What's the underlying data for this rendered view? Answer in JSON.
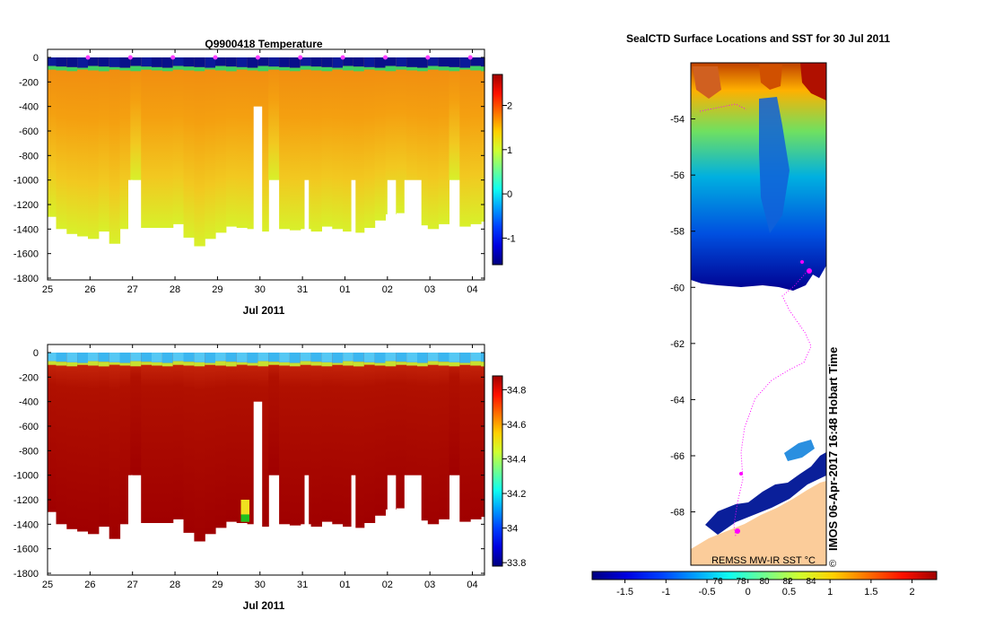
{
  "colors": {
    "jet": [
      "#00007f",
      "#0000e0",
      "#0040ff",
      "#00a0ff",
      "#10ffef",
      "#70ff8f",
      "#cfff30",
      "#ffd000",
      "#ff7000",
      "#ff1000",
      "#a00000"
    ],
    "land": "#fbcc9a",
    "track": "#ff00ff",
    "frame": "#000000"
  },
  "chart_data": [
    {
      "type": "heatmap",
      "title": "Q9900418  Temperature",
      "xlabel": "Jul 2011",
      "ylabel": "",
      "x_ticks": [
        "25",
        "26",
        "27",
        "28",
        "29",
        "30",
        "31",
        "01",
        "02",
        "03",
        "04"
      ],
      "y_ticks": [
        "0",
        "-200",
        "-400",
        "-600",
        "-800",
        "-1000",
        "-1200",
        "-1400",
        "-1600",
        "-1800"
      ],
      "ylim": [
        -1800,
        0
      ],
      "colorbar_ticks": [
        "2",
        "1",
        "0",
        "-1"
      ],
      "colorbar_range": [
        -1.6,
        2.7
      ],
      "surface_layer_value": -1.9,
      "deep_value": 2.0,
      "profile_days": [
        25.0,
        25.2,
        25.45,
        25.7,
        25.95,
        26.2,
        26.45,
        26.7,
        26.95,
        27.2,
        27.45,
        27.7,
        27.95,
        28.2,
        28.45,
        28.7,
        28.95,
        29.2,
        29.45,
        29.7,
        29.95,
        30.2,
        30.45,
        30.7,
        30.95,
        31.2,
        31.45,
        31.7,
        31.95,
        32.2,
        32.45,
        32.7,
        32.95,
        33.2,
        33.45,
        33.7,
        33.95,
        34.2,
        34.45,
        34.7,
        34.95,
        35.2
      ],
      "profile_max_depth": [
        1300,
        1400,
        1440,
        1460,
        1480,
        1420,
        1520,
        1400,
        1000,
        1390,
        1390,
        1390,
        1360,
        1470,
        1540,
        1480,
        1430,
        1380,
        1390,
        1400,
        1420,
        1000,
        1400,
        1410,
        1400,
        1420,
        1380,
        1400,
        1420,
        1430,
        1390,
        1330,
        1280,
        1270,
        1330,
        1370,
        1400,
        1360,
        1000,
        1380,
        1360,
        1340
      ],
      "gaps": [
        {
          "day_from": 26.9,
          "day_to": 27.0,
          "depth_from": 1000
        },
        {
          "day_from": 29.85,
          "day_to": 30.05,
          "depth_from": 400
        },
        {
          "day_from": 31.05,
          "day_to": 31.15,
          "depth_from": 1000
        },
        {
          "day_from": 32.15,
          "day_to": 32.25,
          "depth_from": 1000
        },
        {
          "day_from": 33.0,
          "day_to": 33.2,
          "depth_from": 1000
        },
        {
          "day_from": 33.4,
          "day_to": 33.8,
          "depth_from": 1000
        }
      ],
      "surface_markers": [
        26.0,
        27.0,
        28.0,
        29.0,
        30.0,
        31.0,
        32.0,
        33.0,
        34.0,
        35.0
      ]
    },
    {
      "type": "heatmap",
      "title": "",
      "xlabel": "Jul 2011",
      "ylabel": "",
      "x_ticks": [
        "25",
        "26",
        "27",
        "28",
        "29",
        "30",
        "31",
        "01",
        "02",
        "03",
        "04"
      ],
      "y_ticks": [
        "0",
        "-200",
        "-400",
        "-600",
        "-800",
        "-1000",
        "-1200",
        "-1400",
        "-1600",
        "-1800"
      ],
      "ylim": [
        -1800,
        0
      ],
      "colorbar_ticks": [
        "34.8",
        "34.6",
        "34.4",
        "34.2",
        "34",
        "33.8"
      ],
      "colorbar_range": [
        33.78,
        34.88
      ],
      "surface_layer_value": 34.0,
      "deep_value": 34.75,
      "profile_days": [
        25.0,
        25.2,
        25.45,
        25.7,
        25.95,
        26.2,
        26.45,
        26.7,
        26.95,
        27.2,
        27.45,
        27.7,
        27.95,
        28.2,
        28.45,
        28.7,
        28.95,
        29.2,
        29.45,
        29.7,
        29.95,
        30.2,
        30.45,
        30.7,
        30.95,
        31.2,
        31.45,
        31.7,
        31.95,
        32.2,
        32.45,
        32.7,
        32.95,
        33.2,
        33.45,
        33.7,
        33.95,
        34.2,
        34.45,
        34.7,
        34.95,
        35.2
      ],
      "profile_max_depth": [
        1300,
        1400,
        1440,
        1460,
        1480,
        1420,
        1520,
        1400,
        1000,
        1390,
        1390,
        1390,
        1360,
        1470,
        1540,
        1480,
        1430,
        1380,
        1390,
        1400,
        1420,
        1000,
        1400,
        1410,
        1400,
        1420,
        1380,
        1400,
        1420,
        1430,
        1390,
        1330,
        1280,
        1270,
        1330,
        1370,
        1400,
        1360,
        1000,
        1380,
        1360,
        1340
      ],
      "gaps": [
        {
          "day_from": 26.9,
          "day_to": 27.0,
          "depth_from": 1000
        },
        {
          "day_from": 29.85,
          "day_to": 30.05,
          "depth_from": 400
        },
        {
          "day_from": 31.05,
          "day_to": 31.15,
          "depth_from": 1000
        },
        {
          "day_from": 32.15,
          "day_to": 32.25,
          "depth_from": 1000
        },
        {
          "day_from": 33.0,
          "day_to": 33.2,
          "depth_from": 1000
        },
        {
          "day_from": 33.4,
          "day_to": 33.8,
          "depth_from": 1000
        }
      ],
      "anomaly_column": {
        "day_from": 29.55,
        "day_to": 29.75,
        "depth_from": 1200,
        "depth_to": 1380
      }
    },
    {
      "type": "heatmap",
      "title": "SealCTD Surface Locations and SST for 30 Jul 2011",
      "y_ticks": [
        "-54",
        "-56",
        "-58",
        "-60",
        "-62",
        "-64",
        "-66",
        "-68"
      ],
      "ylim": [
        -69.9,
        -52.0
      ],
      "colorbar_ticks": [
        "-1.5",
        "-1",
        "-0.5",
        "0",
        "0.5",
        "1",
        "1.5",
        "2"
      ],
      "colorbar_range": [
        -1.9,
        2.3
      ],
      "colorbar_labels_inside": [
        "76",
        "78",
        "80",
        "82",
        "84"
      ],
      "annotation": "REMSS MW-IR SST °C",
      "watermark": "IMOS 06-Apr-2017 16:48 Hobart Time",
      "copyright": "©"
    }
  ]
}
